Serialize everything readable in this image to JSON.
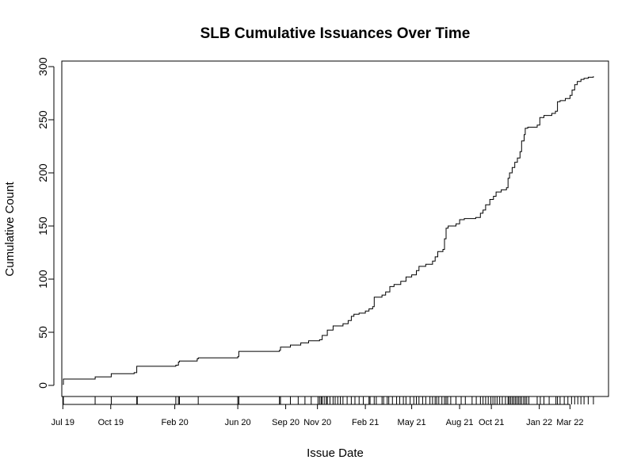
{
  "chart_data": {
    "type": "line",
    "title": "SLB Cumulative Issuances Over Time",
    "xlabel": "Issue Date",
    "ylabel": "Cumulative Count",
    "ylim": [
      0,
      300
    ],
    "yticks": [
      0,
      50,
      100,
      150,
      200,
      250,
      300
    ],
    "xlim": [
      "2019-06-29",
      "2022-05-14"
    ],
    "xticks": [
      {
        "date": "2019-07-01",
        "label": "Jul 19"
      },
      {
        "date": "2019-10-01",
        "label": "Oct 19"
      },
      {
        "date": "2020-02-01",
        "label": "Feb 20"
      },
      {
        "date": "2020-06-01",
        "label": "Jun 20"
      },
      {
        "date": "2020-09-01",
        "label": "Sep 20"
      },
      {
        "date": "2020-11-01",
        "label": "Nov 20"
      },
      {
        "date": "2021-02-01",
        "label": "Feb 21"
      },
      {
        "date": "2021-05-01",
        "label": "May 21"
      },
      {
        "date": "2021-08-01",
        "label": "Aug 21"
      },
      {
        "date": "2021-10-01",
        "label": "Oct 21"
      },
      {
        "date": "2022-01-01",
        "label": "Jan 22"
      },
      {
        "date": "2022-03-01",
        "label": "Mar 22"
      }
    ],
    "grid": false,
    "series": [
      {
        "step": true,
        "points": [
          [
            "2019-07-01",
            1
          ],
          [
            "2019-07-02",
            6
          ],
          [
            "2019-09-01",
            8
          ],
          [
            "2019-10-02",
            11
          ],
          [
            "2019-11-15",
            12
          ],
          [
            "2019-11-20",
            18
          ],
          [
            "2020-02-03",
            19
          ],
          [
            "2020-02-08",
            22
          ],
          [
            "2020-02-10",
            23
          ],
          [
            "2020-03-15",
            25
          ],
          [
            "2020-03-17",
            26
          ],
          [
            "2020-06-01",
            27
          ],
          [
            "2020-06-03",
            32
          ],
          [
            "2020-08-20",
            33
          ],
          [
            "2020-08-22",
            36
          ],
          [
            "2020-09-10",
            38
          ],
          [
            "2020-09-30",
            40
          ],
          [
            "2020-10-15",
            42
          ],
          [
            "2020-11-05",
            43
          ],
          [
            "2020-11-10",
            47
          ],
          [
            "2020-11-20",
            52
          ],
          [
            "2020-12-01",
            56
          ],
          [
            "2020-12-20",
            58
          ],
          [
            "2020-12-30",
            61
          ],
          [
            "2021-01-05",
            65
          ],
          [
            "2021-01-10",
            67
          ],
          [
            "2021-01-20",
            68
          ],
          [
            "2021-02-01",
            70
          ],
          [
            "2021-02-08",
            72
          ],
          [
            "2021-02-15",
            74
          ],
          [
            "2021-02-18",
            83
          ],
          [
            "2021-03-05",
            85
          ],
          [
            "2021-03-12",
            88
          ],
          [
            "2021-03-20",
            93
          ],
          [
            "2021-03-28",
            95
          ],
          [
            "2021-04-10",
            98
          ],
          [
            "2021-04-20",
            102
          ],
          [
            "2021-05-01",
            104
          ],
          [
            "2021-05-10",
            108
          ],
          [
            "2021-05-15",
            112
          ],
          [
            "2021-05-28",
            114
          ],
          [
            "2021-06-10",
            117
          ],
          [
            "2021-06-15",
            121
          ],
          [
            "2021-06-20",
            126
          ],
          [
            "2021-06-30",
            128
          ],
          [
            "2021-07-03",
            138
          ],
          [
            "2021-07-06",
            148
          ],
          [
            "2021-07-10",
            150
          ],
          [
            "2021-07-25",
            152
          ],
          [
            "2021-08-01",
            156
          ],
          [
            "2021-08-10",
            157
          ],
          [
            "2021-09-01",
            158
          ],
          [
            "2021-09-10",
            162
          ],
          [
            "2021-09-15",
            165
          ],
          [
            "2021-09-20",
            170
          ],
          [
            "2021-09-28",
            175
          ],
          [
            "2021-10-05",
            178
          ],
          [
            "2021-10-10",
            182
          ],
          [
            "2021-10-20",
            184
          ],
          [
            "2021-10-30",
            186
          ],
          [
            "2021-11-02",
            195
          ],
          [
            "2021-11-05",
            200
          ],
          [
            "2021-11-10",
            205
          ],
          [
            "2021-11-15",
            210
          ],
          [
            "2021-11-20",
            214
          ],
          [
            "2021-11-25",
            220
          ],
          [
            "2021-11-28",
            230
          ],
          [
            "2021-12-03",
            236
          ],
          [
            "2021-12-05",
            242
          ],
          [
            "2021-12-10",
            243
          ],
          [
            "2021-12-28",
            245
          ],
          [
            "2022-01-02",
            252
          ],
          [
            "2022-01-10",
            254
          ],
          [
            "2022-01-25",
            256
          ],
          [
            "2022-02-01",
            258
          ],
          [
            "2022-02-05",
            267
          ],
          [
            "2022-02-10",
            268
          ],
          [
            "2022-02-20",
            270
          ],
          [
            "2022-03-01",
            273
          ],
          [
            "2022-03-05",
            278
          ],
          [
            "2022-03-10",
            283
          ],
          [
            "2022-03-15",
            286
          ],
          [
            "2022-03-22",
            288
          ],
          [
            "2022-03-28",
            289
          ],
          [
            "2022-04-05",
            290
          ],
          [
            "2022-04-15",
            291
          ]
        ]
      }
    ],
    "rug": [
      "2019-07-01",
      "2019-07-02",
      "2019-09-01",
      "2019-10-02",
      "2019-11-20",
      "2019-11-21",
      "2020-02-03",
      "2020-02-08",
      "2020-02-10",
      "2020-03-17",
      "2020-06-01",
      "2020-06-03",
      "2020-08-20",
      "2020-08-22",
      "2020-09-10",
      "2020-09-25",
      "2020-10-08",
      "2020-10-20",
      "2020-11-02",
      "2020-11-05",
      "2020-11-08",
      "2020-11-10",
      "2020-11-14",
      "2020-11-18",
      "2020-11-20",
      "2020-11-25",
      "2020-12-01",
      "2020-12-05",
      "2020-12-10",
      "2020-12-15",
      "2020-12-20",
      "2020-12-28",
      "2021-01-05",
      "2021-01-12",
      "2021-01-20",
      "2021-01-28",
      "2021-02-08",
      "2021-02-10",
      "2021-02-18",
      "2021-02-22",
      "2021-03-05",
      "2021-03-08",
      "2021-03-15",
      "2021-03-18",
      "2021-03-25",
      "2021-04-02",
      "2021-04-08",
      "2021-04-15",
      "2021-04-20",
      "2021-04-28",
      "2021-05-05",
      "2021-05-10",
      "2021-05-15",
      "2021-05-22",
      "2021-05-28",
      "2021-06-05",
      "2021-06-10",
      "2021-06-15",
      "2021-06-18",
      "2021-06-22",
      "2021-06-28",
      "2021-07-03",
      "2021-07-06",
      "2021-07-09",
      "2021-07-15",
      "2021-07-25",
      "2021-08-04",
      "2021-08-12",
      "2021-08-25",
      "2021-09-02",
      "2021-09-10",
      "2021-09-15",
      "2021-09-20",
      "2021-09-25",
      "2021-09-30",
      "2021-10-04",
      "2021-10-08",
      "2021-10-12",
      "2021-10-17",
      "2021-10-22",
      "2021-10-28",
      "2021-11-02",
      "2021-11-04",
      "2021-11-07",
      "2021-11-10",
      "2021-11-13",
      "2021-11-16",
      "2021-11-19",
      "2021-11-22",
      "2021-11-25",
      "2021-11-28",
      "2021-12-02",
      "2021-12-05",
      "2021-12-08",
      "2021-12-12",
      "2021-12-28",
      "2022-01-03",
      "2022-01-10",
      "2022-01-20",
      "2022-02-02",
      "2022-02-05",
      "2022-02-10",
      "2022-02-18",
      "2022-02-25",
      "2022-03-04",
      "2022-03-10",
      "2022-03-16",
      "2022-03-22",
      "2022-03-28",
      "2022-04-05",
      "2022-04-15"
    ]
  }
}
